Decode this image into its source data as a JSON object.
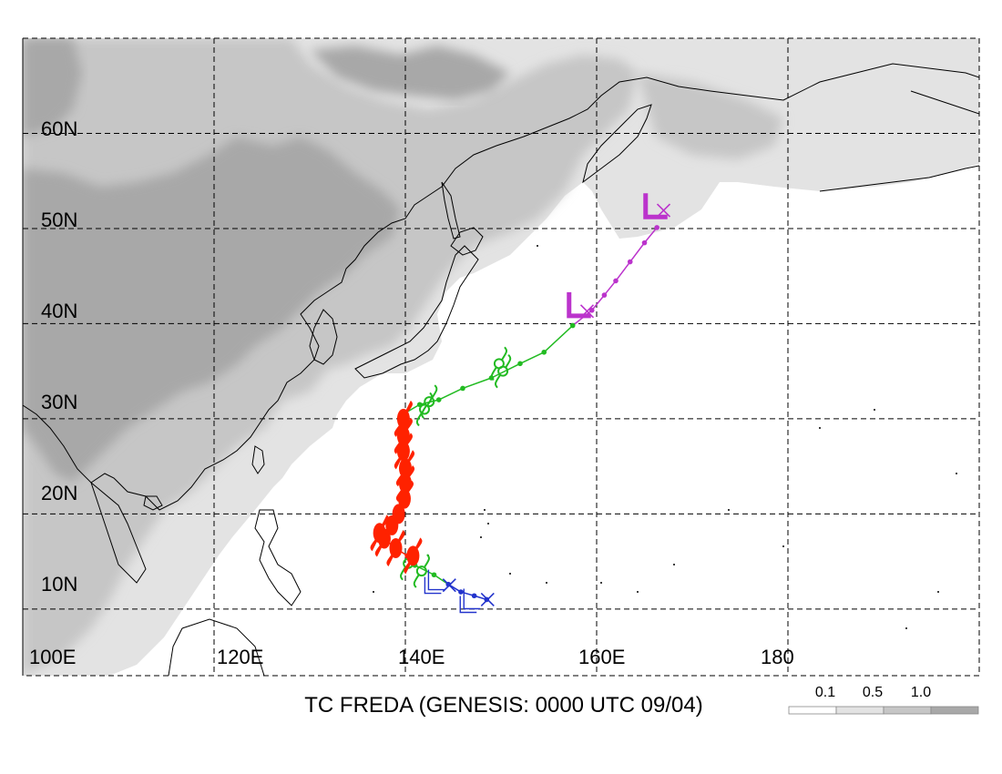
{
  "title": "TC FREDA (GENESIS: 0000 UTC 09/04)",
  "axes": {
    "lon_labels": [
      "100E",
      "120E",
      "140E",
      "160E",
      "180"
    ],
    "lat_labels": [
      "10N",
      "20N",
      "30N",
      "40N",
      "50N",
      "60N"
    ]
  },
  "legend": {
    "labels": [
      "0.1",
      "0.5",
      "1.0"
    ],
    "colors": [
      "#ffffff",
      "#e3e3e3",
      "#c6c6c6",
      "#a8a8a8"
    ]
  },
  "colors": {
    "ocean": "#ffffff",
    "coast": "#000000",
    "grid": "#000000",
    "stage_early": "#2233cc",
    "stage_storm": "#22bb22",
    "stage_typhoon": "#ff2200",
    "stage_extratropical": "#bb33cc"
  },
  "map_data": {
    "lon_range": [
      100,
      200
    ],
    "lat_range": [
      3,
      70
    ],
    "gridlines_lon": [
      100,
      120,
      140,
      160,
      180
    ],
    "gridlines_lat": [
      10,
      20,
      30,
      40,
      50,
      60
    ],
    "track": [
      {
        "lon": 148.5,
        "lat": 11.0,
        "stage": "early"
      },
      {
        "lon": 147.2,
        "lat": 11.4,
        "stage": "early"
      },
      {
        "lon": 145.8,
        "lat": 11.8,
        "stage": "early"
      },
      {
        "lon": 144.5,
        "lat": 12.6,
        "stage": "early"
      },
      {
        "lon": 143.0,
        "lat": 13.6,
        "stage": "storm"
      },
      {
        "lon": 141.0,
        "lat": 14.6,
        "stage": "storm"
      },
      {
        "lon": 140.2,
        "lat": 15.6,
        "stage": "typhoon"
      },
      {
        "lon": 139.0,
        "lat": 16.4,
        "stage": "typhoon"
      },
      {
        "lon": 137.5,
        "lat": 17.6,
        "stage": "typhoon"
      },
      {
        "lon": 138.5,
        "lat": 18.6,
        "stage": "typhoon"
      },
      {
        "lon": 139.5,
        "lat": 20.2,
        "stage": "typhoon"
      },
      {
        "lon": 139.8,
        "lat": 22.0,
        "stage": "typhoon"
      },
      {
        "lon": 140.0,
        "lat": 24.0,
        "stage": "typhoon"
      },
      {
        "lon": 139.8,
        "lat": 26.0,
        "stage": "typhoon"
      },
      {
        "lon": 139.8,
        "lat": 28.0,
        "stage": "typhoon"
      },
      {
        "lon": 139.8,
        "lat": 30.5,
        "stage": "typhoon"
      },
      {
        "lon": 141.5,
        "lat": 31.5,
        "stage": "storm"
      },
      {
        "lon": 143.5,
        "lat": 32.0,
        "stage": "storm"
      },
      {
        "lon": 146.0,
        "lat": 33.2,
        "stage": "storm"
      },
      {
        "lon": 149.0,
        "lat": 34.3,
        "stage": "storm"
      },
      {
        "lon": 152.0,
        "lat": 35.8,
        "stage": "storm"
      },
      {
        "lon": 154.5,
        "lat": 37.0,
        "stage": "storm"
      },
      {
        "lon": 157.5,
        "lat": 39.8,
        "stage": "storm"
      },
      {
        "lon": 159.5,
        "lat": 41.4,
        "stage": "extratropical"
      },
      {
        "lon": 160.8,
        "lat": 43.0,
        "stage": "extratropical"
      },
      {
        "lon": 162.0,
        "lat": 44.5,
        "stage": "extratropical"
      },
      {
        "lon": 163.5,
        "lat": 46.5,
        "stage": "extratropical"
      },
      {
        "lon": 165.0,
        "lat": 48.5,
        "stage": "extratropical"
      },
      {
        "lon": 166.3,
        "lat": 50.1,
        "stage": "extratropical"
      }
    ],
    "markers": [
      {
        "lon": 148.6,
        "lat": 11.0,
        "type": "x",
        "stage": "early"
      },
      {
        "lon": 144.6,
        "lat": 12.5,
        "type": "x",
        "stage": "early"
      },
      {
        "lon": 159.0,
        "lat": 41.3,
        "type": "x",
        "stage": "extratropical"
      },
      {
        "lon": 167.0,
        "lat": 51.9,
        "type": "x",
        "stage": "extratropical"
      },
      {
        "lon": 146.5,
        "lat": 10.8,
        "type": "depression",
        "stage": "early"
      },
      {
        "lon": 142.8,
        "lat": 12.8,
        "type": "depression",
        "stage": "early"
      },
      {
        "lon": 157.5,
        "lat": 41.2,
        "type": "extratropical",
        "stage": "extratropical"
      },
      {
        "lon": 165.5,
        "lat": 51.6,
        "type": "extratropical",
        "stage": "extratropical"
      },
      {
        "lon": 140.3,
        "lat": 14.8,
        "type": "storm",
        "stage": "storm"
      },
      {
        "lon": 141.7,
        "lat": 14.0,
        "type": "storm",
        "stage": "storm"
      },
      {
        "lon": 142.5,
        "lat": 31.8,
        "type": "storm",
        "stage": "storm"
      },
      {
        "lon": 142.0,
        "lat": 31.0,
        "type": "storm",
        "stage": "storm"
      },
      {
        "lon": 149.8,
        "lat": 35.8,
        "type": "storm",
        "stage": "storm"
      },
      {
        "lon": 150.2,
        "lat": 35.0,
        "type": "storm",
        "stage": "storm"
      },
      {
        "lon": 140.8,
        "lat": 15.6,
        "type": "typhoon",
        "stage": "typhoon"
      },
      {
        "lon": 139.0,
        "lat": 16.4,
        "type": "typhoon",
        "stage": "typhoon"
      },
      {
        "lon": 137.8,
        "lat": 17.4,
        "type": "typhoon",
        "stage": "typhoon"
      },
      {
        "lon": 137.3,
        "lat": 18.0,
        "type": "typhoon",
        "stage": "typhoon"
      },
      {
        "lon": 138.6,
        "lat": 18.8,
        "type": "typhoon",
        "stage": "typhoon"
      },
      {
        "lon": 139.3,
        "lat": 20.0,
        "type": "typhoon",
        "stage": "typhoon"
      },
      {
        "lon": 139.9,
        "lat": 21.6,
        "type": "typhoon",
        "stage": "typhoon"
      },
      {
        "lon": 140.0,
        "lat": 23.2,
        "type": "typhoon",
        "stage": "typhoon"
      },
      {
        "lon": 140.0,
        "lat": 24.8,
        "type": "typhoon",
        "stage": "typhoon"
      },
      {
        "lon": 139.8,
        "lat": 26.6,
        "type": "typhoon",
        "stage": "typhoon"
      },
      {
        "lon": 139.8,
        "lat": 28.2,
        "type": "typhoon",
        "stage": "typhoon"
      },
      {
        "lon": 139.8,
        "lat": 30.0,
        "type": "typhoon",
        "stage": "typhoon"
      }
    ]
  }
}
